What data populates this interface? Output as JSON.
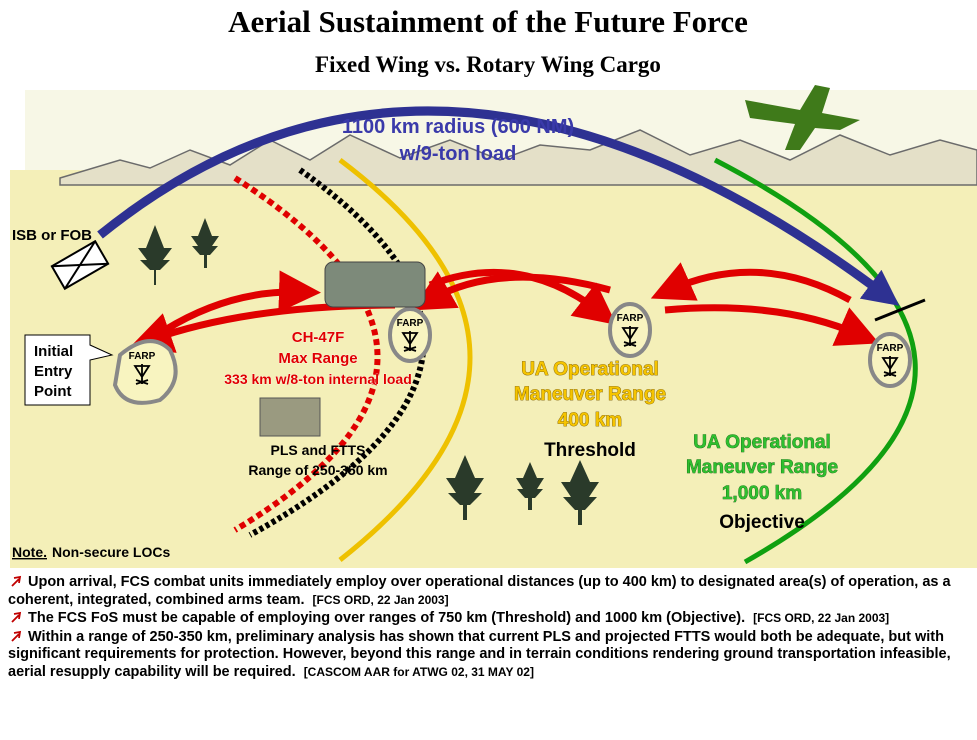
{
  "header": {
    "title": "Aerial Sustainment of the Future Force",
    "subtitle": "Fixed Wing vs. Rotary Wing Cargo"
  },
  "diagram": {
    "fixed_wing": {
      "radius": "1100 km radius (600 NM)",
      "load": "w/9-ton load"
    },
    "isb": "ISB or FOB",
    "entry_point": [
      "Initial",
      "Entry",
      "Point"
    ],
    "farp": [
      "FARP",
      "FARP",
      "FARP",
      "FARP"
    ],
    "ch47": [
      "CH-47F",
      "Max Range",
      "333 km w/8-ton internal load"
    ],
    "pls": [
      "PLS and FTTS",
      "Range of 250-350 km"
    ],
    "threshold": [
      "UA Operational",
      "Maneuver Range",
      "400 km",
      "Threshold"
    ],
    "objective": [
      "UA Operational",
      "Maneuver Range",
      "1,000 km",
      "Objective"
    ],
    "note": {
      "label": "Note.",
      "text": "Non-secure LOCs"
    }
  },
  "bullets": [
    {
      "text": "Upon arrival, FCS combat units immediately employ over operational distances (up to 400 km) to designated area(s) of operation, as a coherent, integrated, combined arms team.",
      "source": "[FCS ORD, 22 Jan 2003]"
    },
    {
      "text": "The FCS FoS must be capable of employing over ranges of 750 km (Threshold) and 1000 km (Objective).",
      "source": "[FCS ORD, 22 Jan 2003]"
    },
    {
      "text": "Within a range of 250-350 km, preliminary analysis has shown that current PLS and projected FTTS would both be adequate, but with significant requirements for protection.  However, beyond this range and in terrain conditions rendering ground transportation infeasible, aerial resupply capability will be required.",
      "source": "[CASCOM AAR for ATWG 02, 31 MAY 02]"
    }
  ]
}
